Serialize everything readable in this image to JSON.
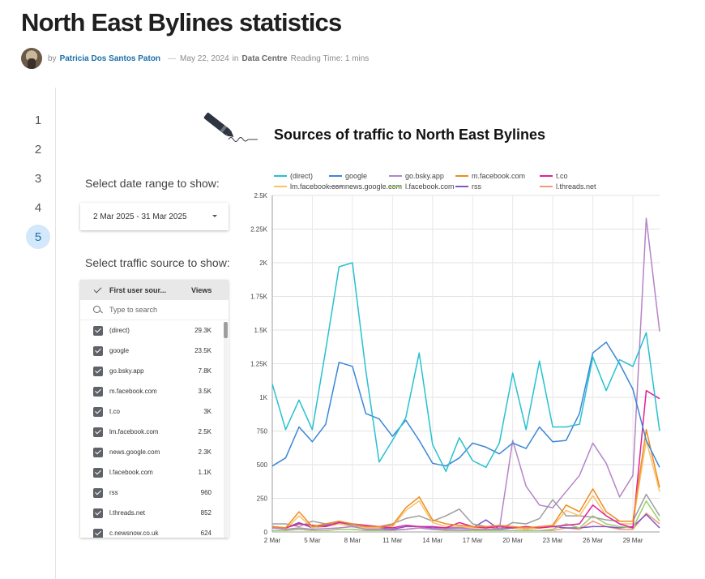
{
  "post": {
    "title": "North East Bylines statistics",
    "by": "by",
    "author": "Patricia Dos Santos Paton",
    "dash": "—",
    "date": "May 22, 2024",
    "in": "in",
    "category": "Data Centre",
    "reading_time": "Reading Time: 1 mins"
  },
  "pagination": [
    "1",
    "2",
    "3",
    "4",
    "5"
  ],
  "active_page": "5",
  "controls": {
    "date_label": "Select date range to show:",
    "date_value": "2 Mar 2025 - 31 Mar 2025",
    "source_label": "Select traffic source to show:",
    "col_name": "First user sour...",
    "col_views": "Views",
    "search_placeholder": "Type to search",
    "rows": [
      {
        "name": "(direct)",
        "views": "29.3K"
      },
      {
        "name": "google",
        "views": "23.5K"
      },
      {
        "name": "go.bsky.app",
        "views": "7.8K"
      },
      {
        "name": "m.facebook.com",
        "views": "3.5K"
      },
      {
        "name": "t.co",
        "views": "3K"
      },
      {
        "name": "lm.facebook.com",
        "views": "2.5K"
      },
      {
        "name": "news.google.com",
        "views": "2.3K"
      },
      {
        "name": "l.facebook.com",
        "views": "1.1K"
      },
      {
        "name": "rss",
        "views": "960"
      },
      {
        "name": "l.threads.net",
        "views": "852"
      },
      {
        "name": "c.newsnow.co.uk",
        "views": "624"
      }
    ]
  },
  "chart_data": {
    "type": "line",
    "title": "Sources of traffic to North East Bylines",
    "xlabel": "",
    "ylabel": "",
    "x_ticks": [
      "2 Mar",
      "5 Mar",
      "8 Mar",
      "11 Mar",
      "14 Mar",
      "17 Mar",
      "20 Mar",
      "23 Mar",
      "26 Mar",
      "29 Mar"
    ],
    "y_ticks": [
      "0",
      "250",
      "500",
      "750",
      "1K",
      "1.25K",
      "1.5K",
      "1.75K",
      "2K",
      "2.25K",
      "2.5K"
    ],
    "ylim": [
      0,
      2500
    ],
    "x_dates": [
      "2 Mar",
      "3 Mar",
      "4 Mar",
      "5 Mar",
      "6 Mar",
      "7 Mar",
      "8 Mar",
      "9 Mar",
      "10 Mar",
      "11 Mar",
      "12 Mar",
      "13 Mar",
      "14 Mar",
      "15 Mar",
      "16 Mar",
      "17 Mar",
      "18 Mar",
      "19 Mar",
      "20 Mar",
      "21 Mar",
      "22 Mar",
      "23 Mar",
      "24 Mar",
      "25 Mar",
      "26 Mar",
      "27 Mar",
      "28 Mar",
      "29 Mar",
      "30 Mar",
      "31 Mar"
    ],
    "grid": true,
    "legend_position": "top",
    "series": [
      {
        "name": "(direct)",
        "color": "#26c1d1",
        "values": [
          1100,
          760,
          980,
          760,
          1350,
          1970,
          2000,
          1200,
          520,
          680,
          850,
          1330,
          650,
          450,
          700,
          530,
          480,
          660,
          1180,
          760,
          1270,
          780,
          780,
          800,
          1300,
          1050,
          1280,
          1230,
          1480,
          750
        ]
      },
      {
        "name": "google",
        "color": "#3a86d8",
        "values": [
          490,
          550,
          780,
          670,
          800,
          1260,
          1230,
          880,
          840,
          710,
          830,
          680,
          510,
          490,
          550,
          660,
          630,
          580,
          660,
          620,
          780,
          670,
          680,
          880,
          1330,
          1410,
          1250,
          1060,
          680,
          480
        ]
      },
      {
        "name": "go.bsky.app",
        "color": "#b584c7",
        "values": [
          30,
          20,
          30,
          20,
          25,
          30,
          40,
          20,
          20,
          15,
          20,
          30,
          20,
          20,
          15,
          20,
          20,
          20,
          680,
          340,
          200,
          180,
          300,
          420,
          660,
          510,
          260,
          420,
          2330,
          1490
        ]
      },
      {
        "name": "m.facebook.com",
        "color": "#f08c1d",
        "values": [
          40,
          30,
          150,
          40,
          60,
          80,
          60,
          40,
          40,
          50,
          180,
          260,
          90,
          60,
          50,
          40,
          40,
          50,
          40,
          30,
          40,
          50,
          200,
          150,
          320,
          150,
          80,
          80,
          760,
          330
        ]
      },
      {
        "name": "t.co",
        "color": "#e0219c",
        "values": [
          40,
          30,
          60,
          50,
          40,
          70,
          60,
          50,
          40,
          30,
          50,
          40,
          40,
          30,
          70,
          40,
          30,
          40,
          30,
          40,
          30,
          40,
          50,
          60,
          200,
          120,
          60,
          30,
          1050,
          990
        ]
      },
      {
        "name": "lm.facebook.com",
        "color": "#f7c26a",
        "values": [
          30,
          20,
          120,
          30,
          40,
          60,
          40,
          30,
          30,
          40,
          160,
          230,
          70,
          40,
          40,
          30,
          30,
          40,
          30,
          20,
          30,
          40,
          160,
          120,
          270,
          120,
          60,
          60,
          680,
          300
        ]
      },
      {
        "name": "news.google.com",
        "color": "#9e9e9e",
        "values": [
          60,
          60,
          40,
          80,
          60,
          70,
          50,
          40,
          40,
          60,
          100,
          120,
          80,
          120,
          170,
          60,
          40,
          20,
          70,
          60,
          100,
          240,
          120,
          120,
          110,
          90,
          80,
          80,
          280,
          120
        ]
      },
      {
        "name": "l.facebook.com",
        "color": "#9bcf6b",
        "values": [
          10,
          10,
          20,
          10,
          10,
          20,
          20,
          10,
          10,
          10,
          20,
          30,
          20,
          10,
          10,
          10,
          10,
          10,
          10,
          10,
          10,
          20,
          60,
          30,
          120,
          60,
          40,
          30,
          230,
          80
        ]
      },
      {
        "name": "rss",
        "color": "#7e57c2",
        "values": [
          40,
          30,
          70,
          30,
          50,
          80,
          40,
          30,
          30,
          20,
          40,
          40,
          30,
          30,
          30,
          30,
          90,
          20,
          30,
          20,
          30,
          40,
          30,
          30,
          40,
          40,
          30,
          40,
          130,
          30
        ]
      },
      {
        "name": "l.threads.net",
        "color": "#f39a7b",
        "values": [
          10,
          10,
          20,
          10,
          10,
          20,
          20,
          10,
          10,
          10,
          20,
          30,
          20,
          10,
          10,
          10,
          10,
          10,
          10,
          10,
          10,
          10,
          30,
          20,
          80,
          40,
          20,
          20,
          140,
          60
        ]
      }
    ]
  }
}
